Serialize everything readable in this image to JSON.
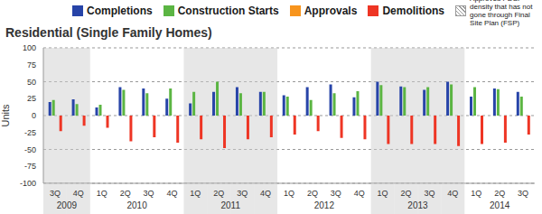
{
  "chart_data": {
    "type": "bar",
    "title": "Residential (Single Family Homes)",
    "y_label": "Units",
    "categories": [
      "3Q",
      "4Q",
      "1Q",
      "2Q",
      "3Q",
      "4Q",
      "1Q",
      "2Q",
      "3Q",
      "4Q",
      "1Q",
      "2Q",
      "3Q",
      "4Q",
      "1Q",
      "2Q",
      "3Q",
      "4Q",
      "1Q",
      "2Q",
      "3Q"
    ],
    "years": [
      "2009",
      "2009",
      "2010",
      "2010",
      "2010",
      "2010",
      "2011",
      "2011",
      "2011",
      "2011",
      "2012",
      "2012",
      "2012",
      "2012",
      "2013",
      "2013",
      "2013",
      "2013",
      "2014",
      "2014",
      "2014"
    ],
    "series": [
      {
        "name": "Completions",
        "color": "#2744a8",
        "values": [
          20,
          24,
          12,
          42,
          40,
          25,
          18,
          35,
          42,
          35,
          30,
          42,
          46,
          27,
          50,
          43,
          38,
          50,
          28,
          40,
          35
        ]
      },
      {
        "name": "Construction Starts",
        "color": "#5bb543",
        "values": [
          23,
          17,
          16,
          38,
          33,
          40,
          35,
          50,
          33,
          35,
          28,
          23,
          33,
          36,
          45,
          42,
          42,
          46,
          42,
          39,
          28
        ]
      },
      {
        "name": "Approvals",
        "color": "#f7941d",
        "values": [
          null,
          null,
          null,
          null,
          null,
          null,
          null,
          null,
          null,
          null,
          null,
          null,
          null,
          null,
          null,
          null,
          null,
          null,
          null,
          null,
          null
        ]
      },
      {
        "name": "Demolitions",
        "color": "#ee3524",
        "values": [
          -23,
          -15,
          -18,
          -38,
          -32,
          -40,
          -35,
          -48,
          -35,
          -32,
          -28,
          -23,
          -33,
          -35,
          -42,
          -42,
          -42,
          -45,
          -42,
          -40,
          -28
        ]
      },
      {
        "name": "Approved PDSP density that has not gone through Final Site Plan (FSP)",
        "color": "#9a9a9a",
        "line_style": "hatched",
        "values": [
          null,
          null,
          null,
          null,
          null,
          null,
          null,
          null,
          null,
          null,
          null,
          null,
          null,
          null,
          null,
          null,
          null,
          null,
          null,
          null,
          null
        ]
      }
    ],
    "ylim": [
      -100,
      100
    ],
    "yticks": [
      -100,
      -75,
      -50,
      -25,
      0,
      25,
      50,
      75,
      100
    ],
    "grid": true
  }
}
